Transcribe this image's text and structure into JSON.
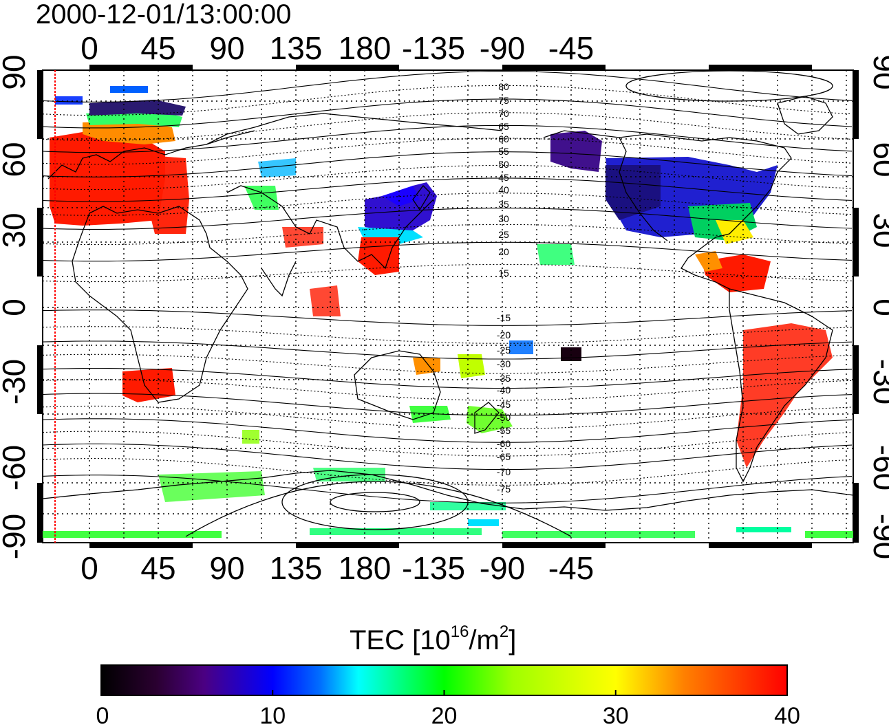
{
  "title": "2000-12-01/13:00:00",
  "map": {
    "lon_ticks_top": [
      "0",
      "45",
      "90",
      "135",
      "180",
      "-135",
      "-90",
      "-45"
    ],
    "lon_ticks_bottom": [
      "0",
      "45",
      "90",
      "135",
      "180",
      "-135",
      "-90",
      "-45"
    ],
    "lat_ticks_left": [
      "90",
      "60",
      "30",
      "0",
      "-30",
      "-60",
      "-90"
    ],
    "lat_ticks_right": [
      "90",
      "60",
      "30",
      "0",
      "-30",
      "-60",
      "-90"
    ],
    "contour_labels": [
      "80",
      "75",
      "70",
      "65",
      "60",
      "55",
      "50",
      "45",
      "40",
      "35",
      "30",
      "25",
      "20",
      "15",
      "-15",
      "-20",
      "-25",
      "-30",
      "-35",
      "-40",
      "-45",
      "-50",
      "-55",
      "-60",
      "-65",
      "-70",
      "-75"
    ],
    "terminator_longitude": -28,
    "colors": {
      "low": "#000000",
      "purple": "#4b0082",
      "blue": "#0000ff",
      "cyan": "#00ffff",
      "green": "#00ff00",
      "yellow": "#ffff00",
      "orange": "#ff8000",
      "red": "#ff0000",
      "terminator": "#ff0000"
    }
  },
  "colorbar": {
    "title_main": "TEC  [10",
    "title_sup1": "16",
    "title_mid": "/m",
    "title_sup2": "2",
    "title_end": "]",
    "ticks": [
      "0",
      "10",
      "20",
      "30",
      "40"
    ],
    "min": 0,
    "max": 40
  }
}
